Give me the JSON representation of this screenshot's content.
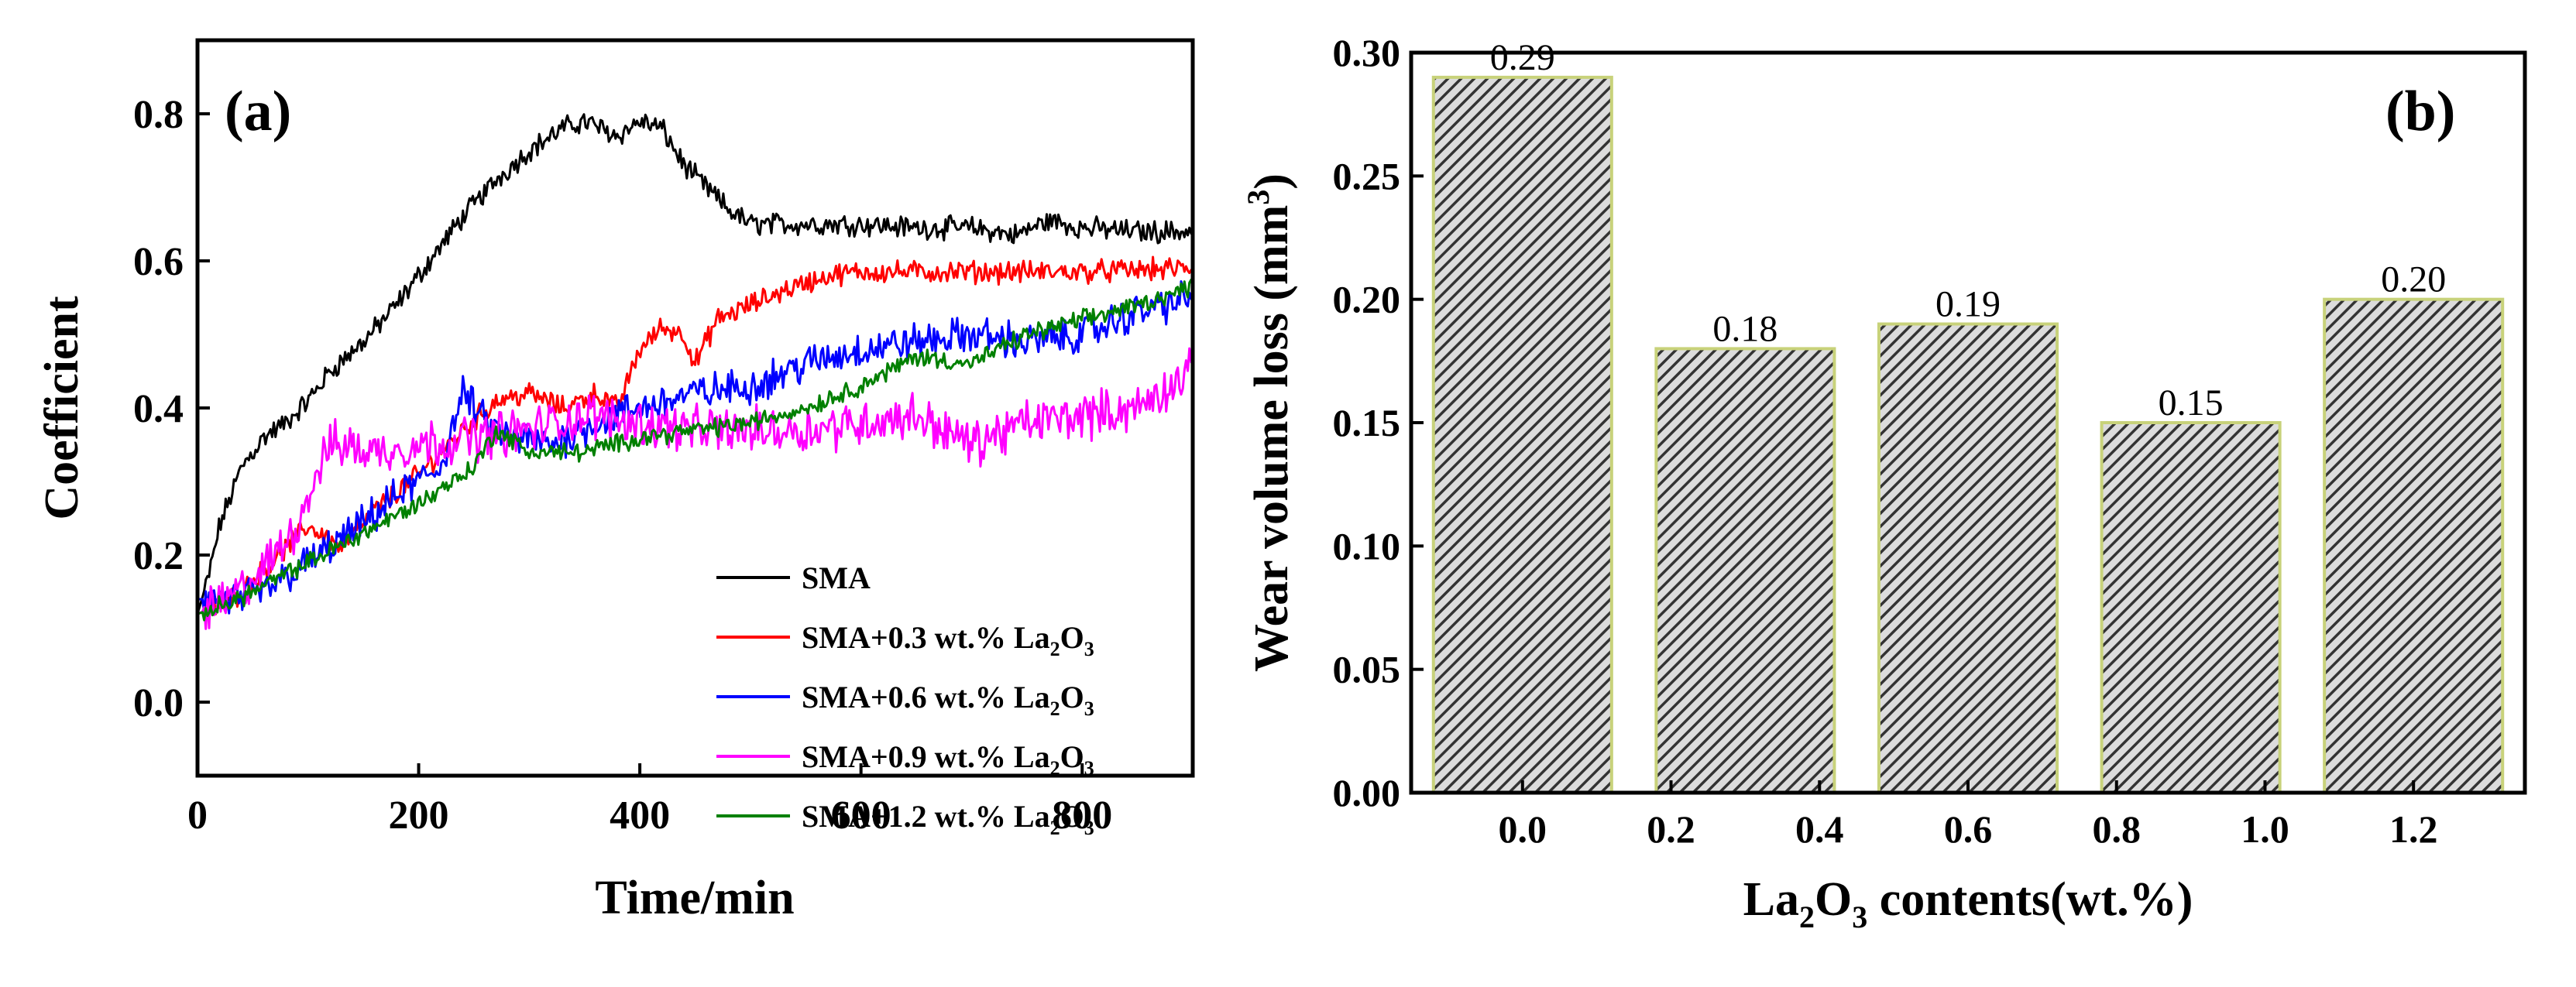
{
  "chart_data": [
    {
      "type": "line",
      "panel_label": "(a)",
      "xlabel": "Time/min",
      "ylabel": "Coefficient",
      "xlim": [
        0,
        900
      ],
      "ylim": [
        -0.1,
        0.9
      ],
      "x_ticks": [
        0,
        200,
        400,
        600,
        800
      ],
      "y_ticks": [
        0.0,
        0.2,
        0.4,
        0.6,
        0.8
      ],
      "x_tick_labels": [
        "0",
        "200",
        "400",
        "600",
        "800"
      ],
      "y_tick_labels": [
        "0.0",
        "0.2",
        "0.4",
        "0.6",
        "0.8"
      ],
      "legend_position": "bottom-right",
      "series": [
        {
          "name": "SMA",
          "legend_main": "SMA",
          "legend_sub": "",
          "legend_tail": "",
          "color": "#000000",
          "noise": 0.012,
          "x": [
            0,
            10,
            20,
            40,
            60,
            80,
            100,
            120,
            150,
            180,
            210,
            240,
            270,
            300,
            330,
            350,
            380,
            400,
            420,
            440,
            460,
            480,
            500,
            550,
            600,
            650,
            700,
            740,
            770,
            800,
            850,
            900
          ],
          "y": [
            0.12,
            0.17,
            0.24,
            0.32,
            0.36,
            0.38,
            0.41,
            0.45,
            0.49,
            0.54,
            0.6,
            0.66,
            0.71,
            0.75,
            0.78,
            0.79,
            0.77,
            0.79,
            0.78,
            0.73,
            0.7,
            0.67,
            0.65,
            0.65,
            0.65,
            0.645,
            0.645,
            0.635,
            0.655,
            0.645,
            0.64,
            0.64
          ]
        },
        {
          "name": "SMA+0.3 wt.% La2O3",
          "legend_main": "SMA+0.3 wt.% La",
          "legend_sub": "2",
          "legend_tail": "O",
          "legend_sub2": "3",
          "color": "#ff0000",
          "noise": 0.012,
          "x": [
            0,
            20,
            40,
            60,
            80,
            100,
            130,
            160,
            200,
            240,
            270,
            300,
            330,
            360,
            380,
            400,
            420,
            440,
            450,
            470,
            500,
            530,
            570,
            600,
            700,
            800,
            900
          ],
          "y": [
            0.12,
            0.13,
            0.15,
            0.18,
            0.21,
            0.24,
            0.21,
            0.26,
            0.31,
            0.37,
            0.41,
            0.42,
            0.4,
            0.42,
            0.4,
            0.48,
            0.51,
            0.5,
            0.46,
            0.52,
            0.54,
            0.56,
            0.58,
            0.585,
            0.585,
            0.585,
            0.59
          ]
        },
        {
          "name": "SMA+0.6 wt.% La2O3",
          "legend_main": "SMA+0.6 wt.% La",
          "legend_sub": "2",
          "legend_tail": "O",
          "legend_sub2": "3",
          "color": "#0000ff",
          "noise": 0.02,
          "x": [
            0,
            20,
            40,
            60,
            100,
            140,
            180,
            220,
            240,
            260,
            280,
            320,
            360,
            400,
            450,
            500,
            550,
            600,
            650,
            700,
            750,
            800,
            850,
            900
          ],
          "y": [
            0.14,
            0.14,
            0.14,
            0.15,
            0.19,
            0.23,
            0.28,
            0.32,
            0.42,
            0.38,
            0.36,
            0.35,
            0.38,
            0.4,
            0.42,
            0.43,
            0.46,
            0.48,
            0.49,
            0.5,
            0.49,
            0.5,
            0.53,
            0.55
          ]
        },
        {
          "name": "SMA+0.9 wt.% La2O3",
          "legend_main": "SMA+0.9 wt.% La",
          "legend_sub": "2",
          "legend_tail": "O",
          "legend_sub2": "3",
          "color": "#ff00ff",
          "noise": 0.025,
          "x": [
            0,
            30,
            60,
            90,
            110,
            120,
            130,
            160,
            200,
            250,
            300,
            350,
            400,
            450,
            500,
            550,
            600,
            650,
            700,
            750,
            800,
            850,
            900
          ],
          "y": [
            0.12,
            0.14,
            0.18,
            0.24,
            0.32,
            0.35,
            0.35,
            0.34,
            0.35,
            0.36,
            0.37,
            0.39,
            0.38,
            0.37,
            0.37,
            0.37,
            0.38,
            0.39,
            0.35,
            0.38,
            0.39,
            0.4,
            0.45
          ]
        },
        {
          "name": "SMA+1.2 wt.% La2O3",
          "legend_main": "SMA+1.2 wt.% La",
          "legend_sub": "2",
          "legend_tail": "O",
          "legend_sub2": "3",
          "color": "#008000",
          "noise": 0.01,
          "x": [
            0,
            20,
            50,
            100,
            150,
            200,
            250,
            270,
            300,
            350,
            400,
            450,
            500,
            550,
            600,
            650,
            700,
            750,
            800,
            850,
            900
          ],
          "y": [
            0.12,
            0.13,
            0.15,
            0.19,
            0.23,
            0.27,
            0.32,
            0.37,
            0.34,
            0.34,
            0.36,
            0.37,
            0.38,
            0.4,
            0.43,
            0.47,
            0.46,
            0.5,
            0.52,
            0.54,
            0.565
          ]
        }
      ]
    },
    {
      "type": "bar",
      "panel_label": "(b)",
      "xlabel_main": "La",
      "xlabel_sub": "2",
      "xlabel_mid": "O",
      "xlabel_sub2": "3",
      "xlabel_tail": " contents(wt.%)",
      "ylabel_main": "Wear volume loss (mm",
      "ylabel_sup": "3",
      "ylabel_tail": ")",
      "xlim": [
        -0.15,
        1.35
      ],
      "ylim": [
        0,
        0.3
      ],
      "x_ticks": [
        0.0,
        0.2,
        0.4,
        0.6,
        0.8,
        1.0,
        1.2
      ],
      "x_tick_labels": [
        "0.0",
        "0.2",
        "0.4",
        "0.6",
        "0.8",
        "1.0",
        "1.2"
      ],
      "y_ticks": [
        0.0,
        0.05,
        0.1,
        0.15,
        0.2,
        0.25,
        0.3
      ],
      "y_tick_labels": [
        "0.00",
        "0.05",
        "0.10",
        "0.15",
        "0.20",
        "0.25",
        "0.30"
      ],
      "categories": [
        "0.0",
        "0.3",
        "0.6",
        "0.9",
        "1.2"
      ],
      "x": [
        0.0,
        0.3,
        0.6,
        0.9,
        1.2
      ],
      "bar_width": 0.24,
      "values": [
        0.29,
        0.18,
        0.19,
        0.15,
        0.2
      ],
      "value_labels": [
        "0.29",
        "0.18",
        "0.19",
        "0.15",
        "0.20"
      ],
      "bar_fill": "#555555",
      "bar_edge": "#c8d27a"
    }
  ]
}
